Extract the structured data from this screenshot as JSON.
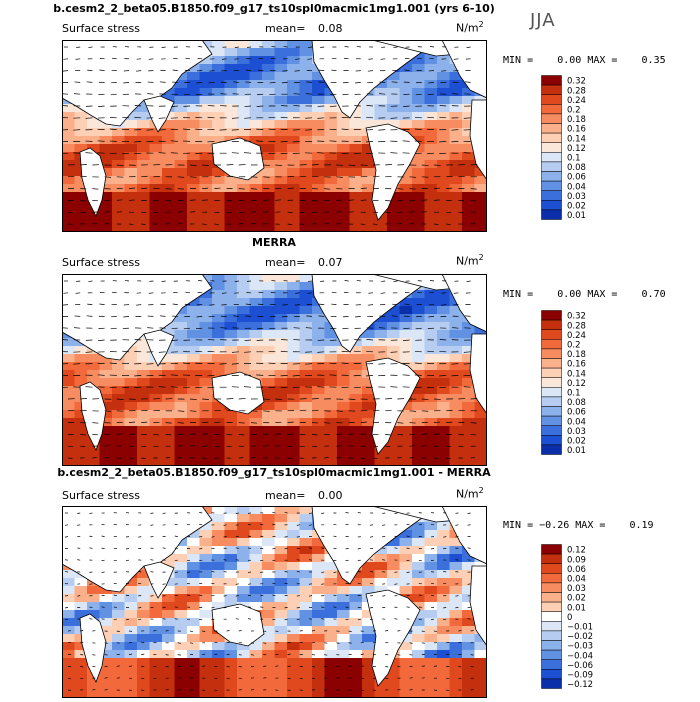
{
  "season": "JJA",
  "units": "N/m",
  "units_exp": "2",
  "panels": [
    {
      "title": "b.cesm2_2_beta05.B1850.f09_g17_ts10spl0macmic1mg1.001 (yrs 6-10)",
      "variable": "Surface stress",
      "mean_label": "mean=",
      "mean": "0.08",
      "min_label": "MIN =",
      "min": "0.00",
      "max_label": "MAX =",
      "max": "0.35",
      "levels": [
        "0.32",
        "0.28",
        "0.24",
        "0.2",
        "0.18",
        "0.16",
        "0.14",
        "0.12",
        "0.1",
        "0.08",
        "0.06",
        "0.04",
        "0.03",
        "0.02",
        "0.01"
      ],
      "colors": [
        "#8b0000",
        "#c4300e",
        "#e0491e",
        "#f26a3c",
        "#f78c61",
        "#fbb08c",
        "#fdd0b5",
        "#fbe7d9",
        "#dbe6f7",
        "#b6cdf1",
        "#8db1ea",
        "#6191e3",
        "#3a6fdc",
        "#1d4fd2",
        "#0a2fa8"
      ]
    },
    {
      "title": "MERRA",
      "variable": "Surface stress",
      "mean_label": "mean=",
      "mean": "0.07",
      "min_label": "MIN =",
      "min": "0.00",
      "max_label": "MAX =",
      "max": "0.70",
      "levels": [
        "0.32",
        "0.28",
        "0.24",
        "0.2",
        "0.18",
        "0.16",
        "0.14",
        "0.12",
        "0.1",
        "0.08",
        "0.06",
        "0.04",
        "0.03",
        "0.02",
        "0.01"
      ],
      "colors": [
        "#8b0000",
        "#c4300e",
        "#e0491e",
        "#f26a3c",
        "#f78c61",
        "#fbb08c",
        "#fdd0b5",
        "#fbe7d9",
        "#dbe6f7",
        "#b6cdf1",
        "#8db1ea",
        "#6191e3",
        "#3a6fdc",
        "#1d4fd2",
        "#0a2fa8"
      ]
    },
    {
      "title": "b.cesm2_2_beta05.B1850.f09_g17_ts10spl0macmic1mg1.001 - MERRA",
      "variable": "Surface stress",
      "mean_label": "mean=",
      "mean": "0.00",
      "min_label": "MIN =",
      "min": "−0.26",
      "max_label": "MAX =",
      "max": "0.19",
      "levels": [
        "0.12",
        "0.09",
        "0.06",
        "0.04",
        "0.03",
        "0.02",
        "0.01",
        "0",
        "−0.01",
        "−0.02",
        "−0.03",
        "−0.04",
        "−0.06",
        "−0.09",
        "−0.12"
      ],
      "colors": [
        "#8b0000",
        "#c4300e",
        "#e0491e",
        "#f26a3c",
        "#f78c61",
        "#fbb08c",
        "#fdd0b5",
        "#ffffff",
        "#dbe6f7",
        "#b6cdf1",
        "#8db1ea",
        "#6191e3",
        "#3a6fdc",
        "#1d4fd2",
        "#0a2fa8"
      ]
    }
  ]
}
